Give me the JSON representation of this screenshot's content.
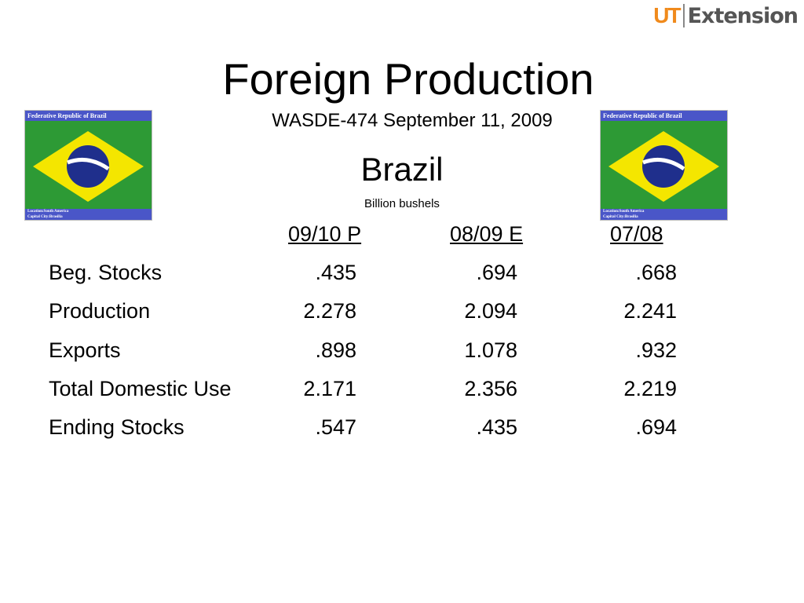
{
  "logo": {
    "ut": "UT",
    "text": "Extension"
  },
  "title": "Foreign Production",
  "subtitle": "WASDE-474 September 11, 2009",
  "country": "Brazil",
  "unit": "Billion bushels",
  "flag_card": {
    "header": "Federative Republic of Brazil",
    "location": "Location:South America",
    "capital": "Capital City:Brasilia",
    "colors": {
      "green": "#2d9a35",
      "yellow": "#f4e600",
      "blue": "#1f2f8c",
      "bar": "#4a56c8"
    }
  },
  "table": {
    "columns": [
      "09/10 P",
      "08/09 E",
      "07/08"
    ],
    "rows": [
      {
        "label": "Beg. Stocks",
        "values": [
          ".435",
          ".694",
          ".668"
        ]
      },
      {
        "label": "Production",
        "values": [
          "2.278",
          "2.094",
          "2.241"
        ]
      },
      {
        "label": "Exports",
        "values": [
          ".898",
          "1.078",
          ".932"
        ]
      },
      {
        "label": "Total Domestic Use",
        "values": [
          "2.171",
          "2.356",
          "2.219"
        ]
      },
      {
        "label": "Ending Stocks",
        "values": [
          ".547",
          ".435",
          ".694"
        ]
      }
    ]
  }
}
